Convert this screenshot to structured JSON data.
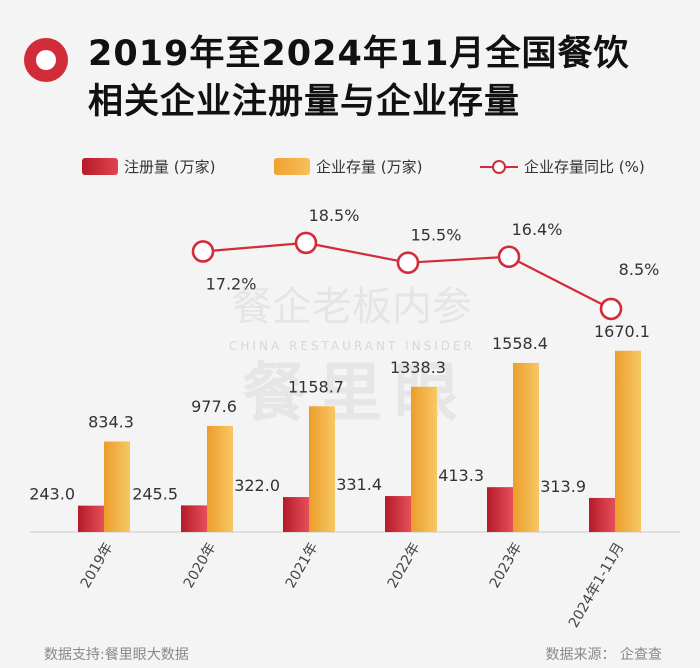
{
  "title_line1": "2019年至2024年11月全国餐饮",
  "title_line2": "相关企业注册量与企业存量",
  "colors": {
    "registration": "#d9323e",
    "stock": "#f2aa36",
    "yoy": "#d22b3a",
    "accent": "#d22b3a"
  },
  "watermark": {
    "main": "餐企老板内参",
    "sub": "CHINA RESTAURANT INSIDER",
    "big": "餐里眼"
  },
  "footer": {
    "left": "数据支持:餐里眼大数据",
    "right": "数据来源：  企查查"
  },
  "chart_data": {
    "type": "bar",
    "title": "2019年至2024年11月全国餐饮相关企业注册量与企业存量",
    "categories": [
      "2019年",
      "2020年",
      "2021年",
      "2022年",
      "2023年",
      "2024年1-11月"
    ],
    "series": [
      {
        "name": "注册量 (万家)",
        "type": "bar",
        "values": [
          243.0,
          245.5,
          322.0,
          331.4,
          413.3,
          313.9
        ],
        "labels": [
          "243.0",
          "245.5",
          "322.0",
          "331.4",
          "413.3",
          "313.9"
        ]
      },
      {
        "name": "企业存量 (万家)",
        "type": "bar",
        "values": [
          834.3,
          977.6,
          1158.7,
          1338.3,
          1558.4,
          1670.1
        ],
        "labels": [
          "834.3",
          "977.6",
          "1158.7",
          "1338.3",
          "1558.4",
          "1670.1"
        ]
      },
      {
        "name": "企业存量同比 (%)",
        "type": "line",
        "x": [
          "2020年",
          "2021年",
          "2022年",
          "2023年",
          "2024年1-11月"
        ],
        "values": [
          17.2,
          18.5,
          15.5,
          16.4,
          8.5
        ],
        "labels": [
          "17.2%",
          "18.5%",
          "15.5%",
          "16.4%",
          "8.5%"
        ]
      }
    ],
    "legend_position": "top-left",
    "grid": false
  }
}
